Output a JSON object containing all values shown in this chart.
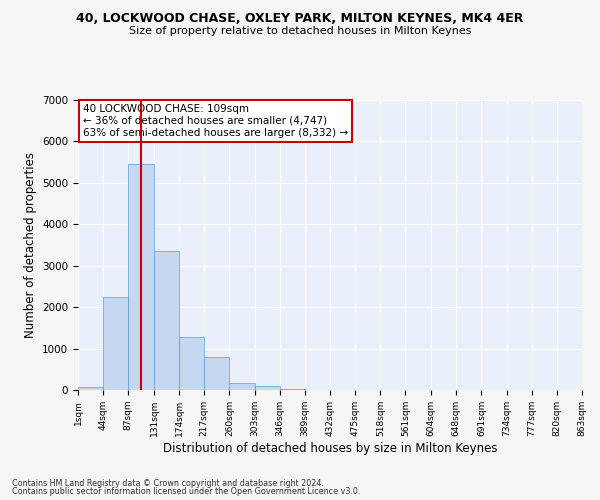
{
  "title_line1": "40, LOCKWOOD CHASE, OXLEY PARK, MILTON KEYNES, MK4 4ER",
  "title_line2": "Size of property relative to detached houses in Milton Keynes",
  "xlabel": "Distribution of detached houses by size in Milton Keynes",
  "ylabel": "Number of detached properties",
  "annotation_line1": "40 LOCKWOOD CHASE: 109sqm",
  "annotation_line2": "← 36% of detached houses are smaller (4,747)",
  "annotation_line3": "63% of semi-detached houses are larger (8,332) →",
  "footer_line1": "Contains HM Land Registry data © Crown copyright and database right 2024.",
  "footer_line2": "Contains public sector information licensed under the Open Government Licence v3.0.",
  "bar_color": "#c5d8f0",
  "bar_edge_color": "#5b9bd5",
  "background_color": "#eaf0fb",
  "fig_background_color": "#f5f5f5",
  "grid_color": "#ffffff",
  "vline_color": "#cc0000",
  "vline_x": 109,
  "annotation_box_color": "#ffffff",
  "annotation_box_edge": "#cc0000",
  "bins": [
    1,
    44,
    87,
    131,
    174,
    217,
    260,
    303,
    346,
    389,
    432,
    475,
    518,
    561,
    604,
    648,
    691,
    734,
    777,
    820,
    863
  ],
  "bar_heights": [
    75,
    2250,
    5450,
    3350,
    1280,
    800,
    175,
    90,
    30,
    5,
    2,
    1,
    1,
    0,
    0,
    0,
    0,
    0,
    0,
    0
  ],
  "ylim": [
    0,
    7000
  ],
  "yticks": [
    0,
    1000,
    2000,
    3000,
    4000,
    5000,
    6000,
    7000
  ]
}
